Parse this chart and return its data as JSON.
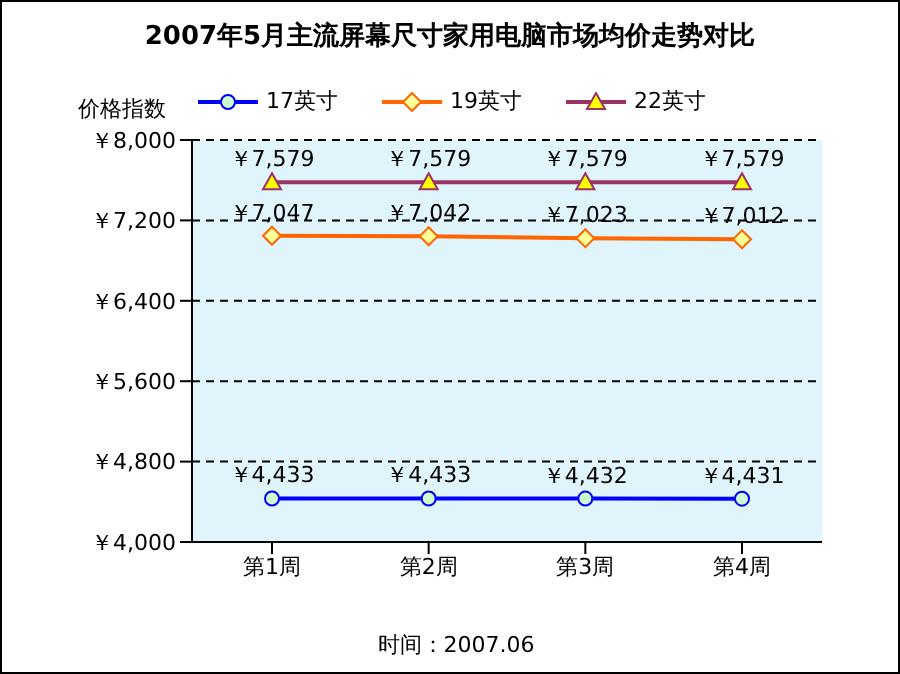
{
  "chart_data": {
    "type": "line",
    "title": "2007年5月主流屏幕尺寸家用电脑市场均价走势对比",
    "ylabel": "价格指数",
    "categories": [
      "第1周",
      "第2周",
      "第3周",
      "第4周"
    ],
    "series": [
      {
        "name": "17英寸",
        "color": "#0000ff",
        "marker": "circle",
        "values": [
          4433,
          4433,
          4432,
          4431
        ],
        "value_labels": [
          "￥4,433",
          "￥4,433",
          "￥4,432",
          "￥4,431"
        ]
      },
      {
        "name": "19英寸",
        "color": "#ff6600",
        "marker": "diamond",
        "values": [
          7047,
          7042,
          7023,
          7012
        ],
        "value_labels": [
          "￥7,047",
          "￥7,042",
          "￥7,023",
          "￥7,012"
        ]
      },
      {
        "name": "22英寸",
        "color": "#993366",
        "marker": "triangle",
        "values": [
          7579,
          7579,
          7579,
          7579
        ],
        "value_labels": [
          "￥7,579",
          "￥7,579",
          "￥7,579",
          "￥7,579"
        ]
      }
    ],
    "ylim": [
      4000,
      8000
    ],
    "yticks": [
      {
        "value": 4000,
        "label": "￥4,000"
      },
      {
        "value": 4800,
        "label": "￥4,800"
      },
      {
        "value": 5600,
        "label": "￥5,600"
      },
      {
        "value": 6400,
        "label": "￥6,400"
      },
      {
        "value": 7200,
        "label": "￥7,200"
      },
      {
        "value": 8000,
        "label": "￥8,000"
      }
    ],
    "grid": "y",
    "legend": "top",
    "annotations": [
      "时间：2007.06"
    ]
  }
}
